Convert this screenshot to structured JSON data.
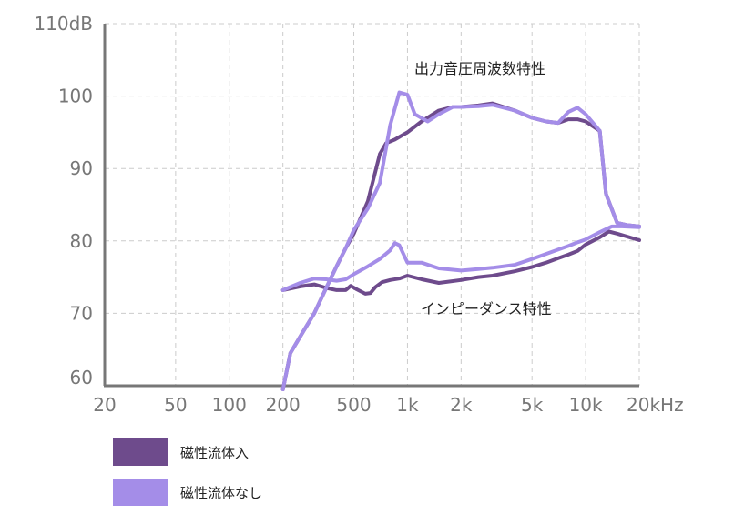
{
  "chart_data": {
    "type": "line",
    "x_scale": "log",
    "ylim": [
      60,
      110
    ],
    "xlim": [
      20,
      20000
    ],
    "y_ticks": [
      {
        "value": 60,
        "label": "60"
      },
      {
        "value": 70,
        "label": "70"
      },
      {
        "value": 80,
        "label": "80"
      },
      {
        "value": 90,
        "label": "90"
      },
      {
        "value": 100,
        "label": "100"
      },
      {
        "value": 110,
        "label": "110dB"
      }
    ],
    "x_ticks": [
      {
        "value": 20,
        "label": "20"
      },
      {
        "value": 50,
        "label": "50"
      },
      {
        "value": 100,
        "label": "100"
      },
      {
        "value": 200,
        "label": "200"
      },
      {
        "value": 500,
        "label": "500"
      },
      {
        "value": 1000,
        "label": "1k"
      },
      {
        "value": 2000,
        "label": "2k"
      },
      {
        "value": 5000,
        "label": "5k"
      },
      {
        "value": 10000,
        "label": "10k"
      },
      {
        "value": 20000,
        "label": "20kHz"
      }
    ],
    "grid": true,
    "annotations": [
      "出力音圧周波数特性",
      "インピーダンス特性"
    ],
    "series": [
      {
        "name": "磁性流体入",
        "color": "#6e4b8c",
        "curves": [
          [
            [
              200,
              59.5
            ],
            [
              220,
              64.5
            ],
            [
              260,
              67.5
            ],
            [
              300,
              70
            ],
            [
              350,
              73.5
            ],
            [
              400,
              76.5
            ],
            [
              450,
              79
            ],
            [
              500,
              81
            ],
            [
              600,
              85.5
            ],
            [
              700,
              92
            ],
            [
              760,
              93.5
            ],
            [
              850,
              94
            ],
            [
              1000,
              95
            ],
            [
              1200,
              96.5
            ],
            [
              1500,
              98
            ],
            [
              1800,
              98.5
            ],
            [
              2000,
              98.5
            ],
            [
              2500,
              98.7
            ],
            [
              3000,
              99
            ],
            [
              4000,
              98
            ],
            [
              5000,
              97
            ],
            [
              6000,
              96.5
            ],
            [
              7000,
              96.3
            ],
            [
              8000,
              96.8
            ],
            [
              9000,
              96.8
            ],
            [
              10000,
              96.5
            ],
            [
              12000,
              95.2
            ],
            [
              13000,
              86.5
            ],
            [
              15000,
              82.5
            ],
            [
              17000,
              82.2
            ],
            [
              20000,
              82
            ]
          ],
          [
            [
              200,
              73.2
            ],
            [
              250,
              73.7
            ],
            [
              300,
              74
            ],
            [
              350,
              73.5
            ],
            [
              400,
              73.2
            ],
            [
              450,
              73.2
            ],
            [
              480,
              73.8
            ],
            [
              520,
              73.3
            ],
            [
              580,
              72.7
            ],
            [
              620,
              72.8
            ],
            [
              660,
              73.6
            ],
            [
              720,
              74.3
            ],
            [
              800,
              74.6
            ],
            [
              900,
              74.8
            ],
            [
              1000,
              75.2
            ],
            [
              1200,
              74.7
            ],
            [
              1500,
              74.2
            ],
            [
              2000,
              74.6
            ],
            [
              2500,
              75
            ],
            [
              3000,
              75.2
            ],
            [
              4000,
              75.8
            ],
            [
              5000,
              76.4
            ],
            [
              6000,
              77
            ],
            [
              7000,
              77.6
            ],
            [
              8000,
              78.1
            ],
            [
              9000,
              78.6
            ],
            [
              10000,
              79.5
            ],
            [
              12000,
              80.5
            ],
            [
              13500,
              81.3
            ],
            [
              15000,
              81
            ],
            [
              20000,
              80.1
            ]
          ]
        ]
      },
      {
        "name": "磁性流体なし",
        "color": "#a48de8",
        "curves": [
          [
            [
              200,
              59.5
            ],
            [
              220,
              64.5
            ],
            [
              260,
              67.5
            ],
            [
              300,
              70
            ],
            [
              350,
              73.5
            ],
            [
              400,
              76.5
            ],
            [
              450,
              79
            ],
            [
              500,
              81.5
            ],
            [
              600,
              84.5
            ],
            [
              700,
              88
            ],
            [
              800,
              96
            ],
            [
              900,
              100.5
            ],
            [
              1000,
              100.2
            ],
            [
              1100,
              97.5
            ],
            [
              1300,
              96.5
            ],
            [
              1500,
              97.5
            ],
            [
              1800,
              98.5
            ],
            [
              2000,
              98.5
            ],
            [
              2500,
              98.6
            ],
            [
              3000,
              98.8
            ],
            [
              4000,
              98
            ],
            [
              5000,
              97
            ],
            [
              6000,
              96.5
            ],
            [
              7000,
              96.3
            ],
            [
              8000,
              97.8
            ],
            [
              9000,
              98.4
            ],
            [
              10000,
              97.5
            ],
            [
              12000,
              95.2
            ],
            [
              13000,
              86.5
            ],
            [
              15000,
              82.5
            ],
            [
              17000,
              82.2
            ],
            [
              20000,
              82
            ]
          ],
          [
            [
              200,
              73.2
            ],
            [
              250,
              74.2
            ],
            [
              300,
              74.8
            ],
            [
              350,
              74.7
            ],
            [
              400,
              74.5
            ],
            [
              450,
              74.7
            ],
            [
              500,
              75.4
            ],
            [
              600,
              76.5
            ],
            [
              700,
              77.5
            ],
            [
              800,
              78.7
            ],
            [
              850,
              79.7
            ],
            [
              900,
              79.4
            ],
            [
              1000,
              77
            ],
            [
              1200,
              77
            ],
            [
              1500,
              76.2
            ],
            [
              2000,
              75.9
            ],
            [
              2500,
              76.1
            ],
            [
              3000,
              76.3
            ],
            [
              4000,
              76.7
            ],
            [
              5000,
              77.5
            ],
            [
              6000,
              78.2
            ],
            [
              7000,
              78.8
            ],
            [
              8000,
              79.3
            ],
            [
              9000,
              79.8
            ],
            [
              10000,
              80.2
            ],
            [
              12000,
              81.2
            ],
            [
              14000,
              82
            ],
            [
              16000,
              82
            ],
            [
              20000,
              81.9
            ]
          ]
        ]
      }
    ]
  }
}
